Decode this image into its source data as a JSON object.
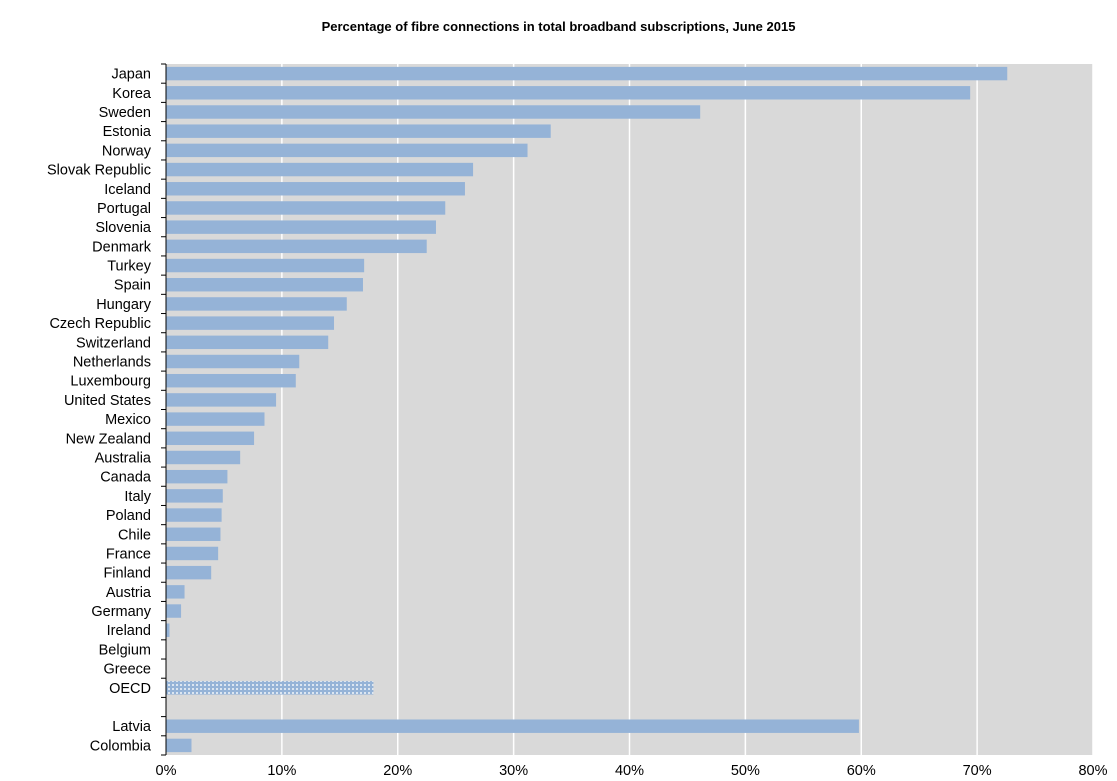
{
  "chart_data": {
    "type": "bar",
    "orientation": "horizontal",
    "title": "Percentage of fibre connections in total broadband subscriptions, June 2015",
    "xlabel": "",
    "ylabel": "",
    "xlim": [
      0,
      80
    ],
    "x_ticks": [
      "0%",
      "10%",
      "20%",
      "30%",
      "40%",
      "50%",
      "60%",
      "70%",
      "80%"
    ],
    "grid": true,
    "colors": {
      "bar": "#95B3D7",
      "plot_bg": "#D9D9D9",
      "grid": "#FFFFFF",
      "oecd_pattern_dot": "#DCE6F1"
    },
    "categories": [
      "Japan",
      "Korea",
      "Sweden",
      "Estonia",
      "Norway",
      "Slovak Republic",
      "Iceland",
      "Portugal",
      "Slovenia",
      "Denmark",
      "Turkey",
      "Spain",
      "Hungary",
      "Czech Republic",
      "Switzerland",
      "Netherlands",
      "Luxembourg",
      "United States",
      "Mexico",
      "New Zealand",
      "Australia",
      "Canada",
      "Italy",
      "Poland",
      "Chile",
      "France",
      "Finland",
      "Austria",
      "Germany",
      "Ireland",
      "Belgium",
      "Greece",
      "OECD",
      "",
      "Latvia",
      "Colombia"
    ],
    "values": [
      72.6,
      69.4,
      46.1,
      33.2,
      31.2,
      26.5,
      25.8,
      24.1,
      23.3,
      22.5,
      17.1,
      17.0,
      15.6,
      14.5,
      14.0,
      11.5,
      11.2,
      9.5,
      8.5,
      7.6,
      6.4,
      5.3,
      4.9,
      4.8,
      4.7,
      4.5,
      3.9,
      1.6,
      1.3,
      0.3,
      0.0,
      0.0,
      17.9,
      null,
      59.8,
      2.2
    ],
    "highlight": {
      "category": "OECD",
      "style": "dotted"
    }
  }
}
